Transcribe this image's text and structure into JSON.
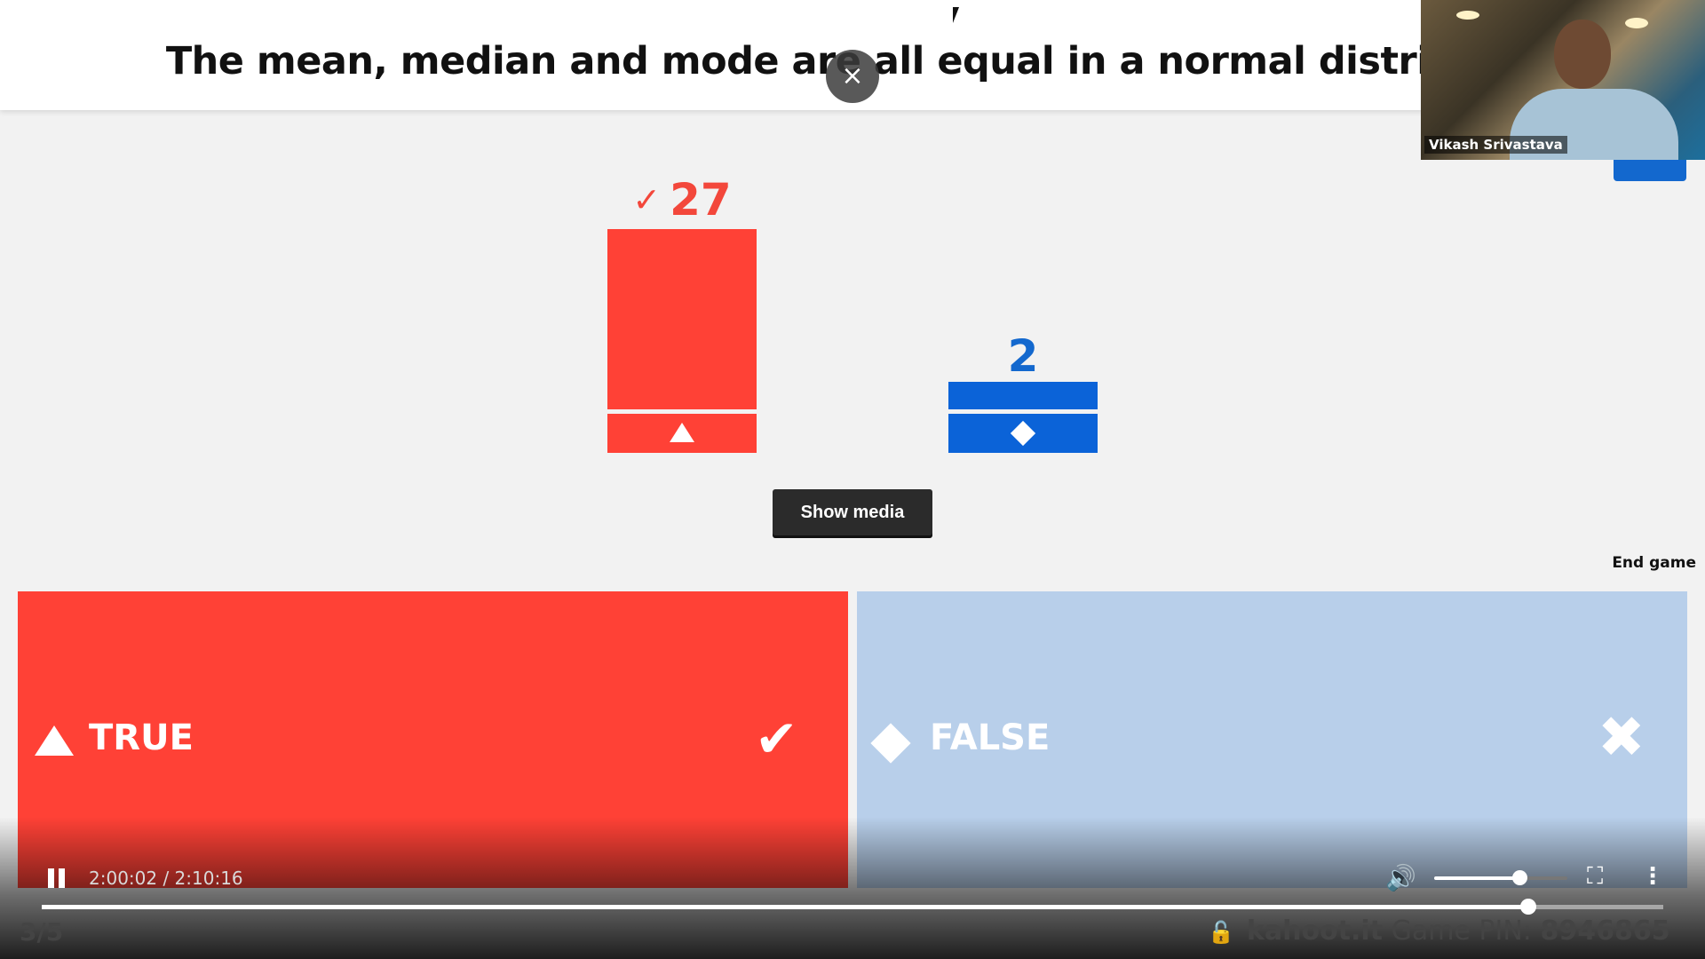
{
  "question": "The mean, median and mode are all equal in a normal distributio",
  "close_icon": "×",
  "webcam": {
    "name": "Vikash Srivastava"
  },
  "results": [
    {
      "shape": "triangle",
      "color": "#ff4136",
      "count": "27",
      "correct": true,
      "check": "✓"
    },
    {
      "shape": "diamond",
      "color": "#0b63d8",
      "count": "2",
      "correct": false
    }
  ],
  "show_media_label": "Show media",
  "end_game_label": "End game",
  "answers": [
    {
      "label": "TRUE",
      "shape": "triangle",
      "color": "#ff4136",
      "mark": "✔",
      "correct": true
    },
    {
      "label": "FALSE",
      "shape": "diamond",
      "color": "#b8cfea",
      "mark": "✖",
      "correct": false
    }
  ],
  "player": {
    "time": "2:00:02 / 2:10:16",
    "progress": 0.917,
    "volume": 0.64,
    "volume_icon": "🔊",
    "fullscreen_icon": "⛶",
    "menu_icon": "⋮"
  },
  "footer": {
    "counter": "3/5",
    "site": "kahoot.it",
    "pin_label": "Game PIN:",
    "pin": "8946865",
    "lock_icon": "🔓"
  }
}
